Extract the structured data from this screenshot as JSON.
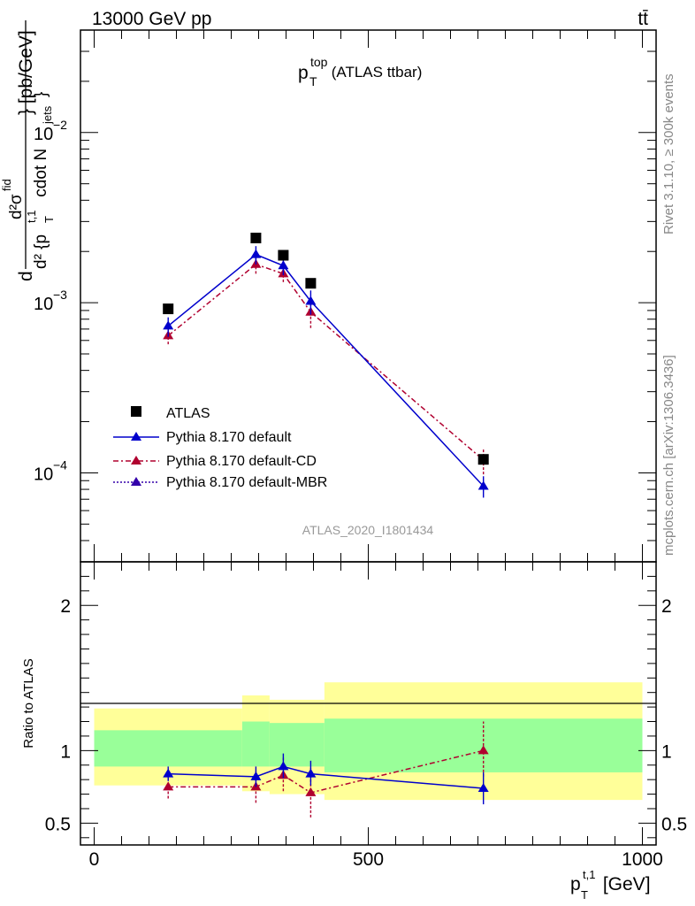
{
  "header": {
    "energy_label": "13000 GeV pp",
    "process_label": "tt̄"
  },
  "side_labels": {
    "rivet": "Rivet 3.1.10, ≥ 300k events",
    "mcplots": "mcplots.cern.ch [arXiv:1306.3436]"
  },
  "colors": {
    "atlas": "#000000",
    "default": "#0000cc",
    "cd": "#b0002f",
    "mbr": "#3300aa",
    "band_outer": "#ffff99",
    "band_inner": "#99ff99"
  },
  "chart_data": [
    {
      "type": "scatter",
      "scale": "log",
      "title": {
        "main": "p",
        "sup": "top",
        "sub": "T",
        "suffix": " (ATLAS ttbar)"
      },
      "ylabel": {
        "d": "d",
        "numerator": "d²σ",
        "numerator_sup": "fid",
        "denominator": "d² {p",
        "denominator_sup": "t,1",
        "denominator_sub": "T",
        "denominator_tail": " cdot N",
        "denominator_tail_sub": "jets",
        "denominator_close": "}",
        "units": "} [pb/GeV]"
      },
      "ylim": [
        3e-05,
        0.04
      ],
      "xlim": [
        -25,
        1025
      ],
      "yticks": [
        {
          "value": 0.01,
          "label": "10",
          "exp": "−2"
        },
        {
          "value": 0.001,
          "label": "10",
          "exp": "−3"
        },
        {
          "value": 0.0001,
          "label": "10",
          "exp": "−4"
        }
      ],
      "watermark": "ATLAS_2020_I1801434",
      "legend": [
        {
          "key": "atlas",
          "label": "ATLAS"
        },
        {
          "key": "default",
          "label": "Pythia 8.170 default"
        },
        {
          "key": "cd",
          "label": "Pythia 8.170 default-CD"
        },
        {
          "key": "mbr",
          "label": "Pythia 8.170 default-MBR"
        }
      ],
      "series": [
        {
          "key": "atlas",
          "name": "ATLAS",
          "x": [
            135,
            295,
            345,
            395,
            710
          ],
          "y": [
            0.00092,
            0.0024,
            0.0019,
            0.0013,
            0.00012
          ]
        },
        {
          "key": "default",
          "name": "Pythia 8.170 default",
          "x": [
            135,
            295,
            345,
            395,
            710
          ],
          "y": [
            0.00073,
            0.00192,
            0.00165,
            0.00102,
            8.35e-05
          ],
          "err_low": [
            0.00063,
            0.00168,
            0.00145,
            0.00085,
            7.15e-05
          ],
          "err_high": [
            0.00082,
            0.00215,
            0.00185,
            0.00118,
            9.55e-05
          ]
        },
        {
          "key": "cd",
          "name": "Pythia 8.170 default-CD",
          "x": [
            135,
            295,
            345,
            395,
            710
          ],
          "y": [
            0.00064,
            0.00168,
            0.00148,
            0.00088,
            0.000119
          ],
          "err_low": [
            0.00057,
            0.00148,
            0.00132,
            0.00071,
            9.8e-05
          ],
          "err_high": [
            0.00072,
            0.00192,
            0.00165,
            0.00104,
            0.000138
          ]
        }
      ]
    },
    {
      "type": "scatter",
      "ylabel": "Ratio to ATLAS",
      "xlabel": {
        "main": "p",
        "sup": "t,1",
        "sub": "T",
        "suffix": " [GeV]"
      },
      "ylim": [
        0.35,
        2.3
      ],
      "xlim": [
        -25,
        1025
      ],
      "yticks": [
        0.5,
        1,
        2
      ],
      "xticks": [
        0,
        500,
        1000
      ],
      "bands": [
        {
          "x0": 0,
          "x1": 270,
          "inner": [
            0.89,
            1.14
          ],
          "outer": [
            0.76,
            1.29
          ]
        },
        {
          "x0": 270,
          "x1": 320,
          "inner": [
            0.89,
            1.2
          ],
          "outer": [
            0.72,
            1.38
          ]
        },
        {
          "x0": 320,
          "x1": 420,
          "inner": [
            0.89,
            1.19
          ],
          "outer": [
            0.7,
            1.35
          ]
        },
        {
          "x0": 420,
          "x1": 1000,
          "inner": [
            0.85,
            1.22
          ],
          "outer": [
            0.66,
            1.47
          ]
        }
      ],
      "series": [
        {
          "key": "default",
          "name": "Pythia 8.170 default",
          "x": [
            135,
            295,
            345,
            395,
            710
          ],
          "y": [
            0.84,
            0.82,
            0.89,
            0.84,
            0.74
          ],
          "err_low": [
            0.79,
            0.75,
            0.81,
            0.76,
            0.63
          ],
          "err_high": [
            0.89,
            0.89,
            0.98,
            0.93,
            0.85
          ]
        },
        {
          "key": "cd",
          "name": "Pythia 8.170 default-CD",
          "x": [
            135,
            295,
            345,
            395,
            710
          ],
          "y": [
            0.75,
            0.75,
            0.83,
            0.71,
            1.0
          ],
          "err_low": [
            0.67,
            0.64,
            0.72,
            0.54,
            0.82
          ],
          "err_high": [
            0.84,
            0.86,
            0.95,
            0.88,
            1.2
          ]
        }
      ]
    }
  ]
}
